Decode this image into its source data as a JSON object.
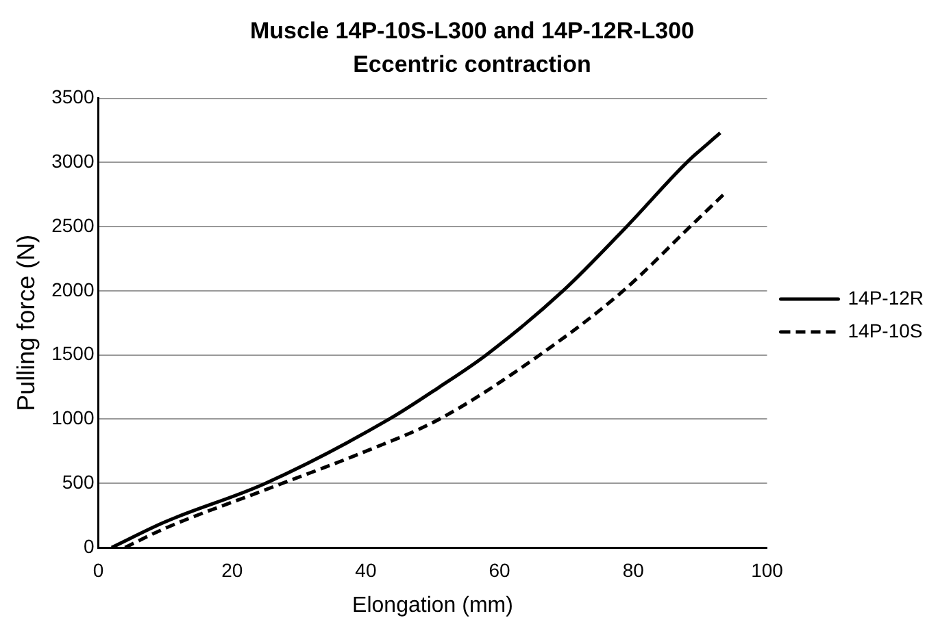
{
  "chart_data": {
    "type": "line",
    "title": "Muscle 14P-10S-L300 and 14P-12R-L300",
    "subtitle": "Eccentric contraction",
    "xlabel": "Elongation (mm)",
    "ylabel": "Pulling force (N)",
    "xlim": [
      0,
      100
    ],
    "xticks": [
      0,
      20,
      40,
      60,
      80,
      100
    ],
    "ylim": [
      0,
      3500
    ],
    "yticks": [
      0,
      500,
      1000,
      1500,
      2000,
      2500,
      3000,
      3500
    ],
    "grid": "y",
    "legend": "right",
    "marker": "none",
    "series": [
      {
        "name": "14P-12R",
        "color": "#000000",
        "line_style": "solid",
        "x": [
          2,
          10,
          25,
          43.5,
          51,
          58,
          69.5,
          79,
          88,
          93
        ],
        "values": [
          0,
          200,
          500,
          1000,
          1250,
          1500,
          2000,
          2500,
          3000,
          3230
        ]
      },
      {
        "name": "14P-10S",
        "color": "#000000",
        "line_style": "dashed",
        "x": [
          4,
          10,
          25,
          40,
          51,
          66,
          78.5,
          88.5,
          93.5
        ],
        "values": [
          0,
          150,
          450,
          750,
          1000,
          1500,
          2000,
          2500,
          2750
        ]
      }
    ]
  }
}
